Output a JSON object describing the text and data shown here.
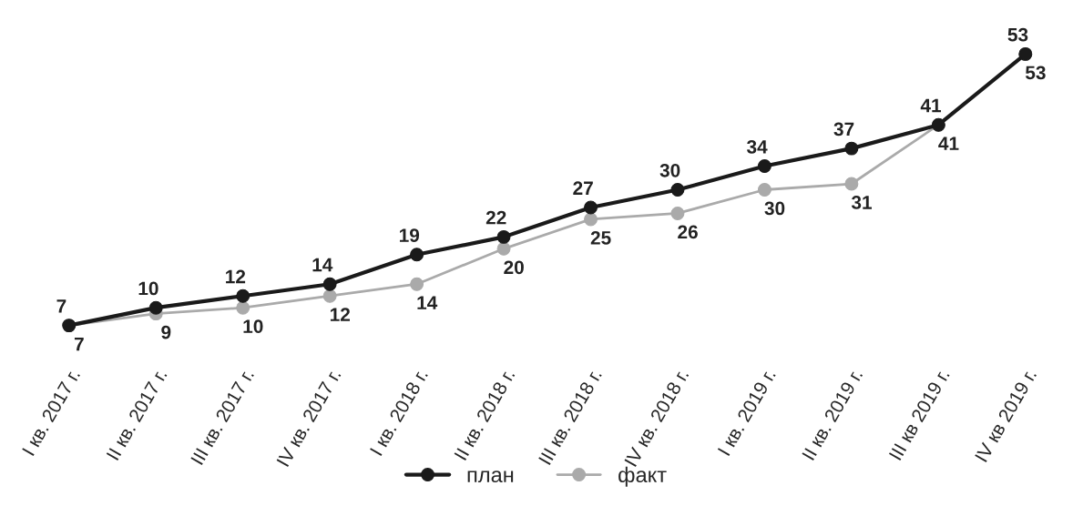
{
  "chart_data": {
    "type": "line",
    "categories": [
      "I кв. 2017 г.",
      "II кв. 2017 г.",
      "III кв. 2017 г.",
      "IV кв. 2017 г.",
      "I кв. 2018 г.",
      "II кв. 2018 г.",
      "III кв. 2018 г.",
      "IV кв. 2018 г.",
      "I кв. 2019 г.",
      "II кв. 2019 г.",
      "III кв 2019 г.",
      "IV кв 2019 г."
    ],
    "series": [
      {
        "name": "план",
        "color": "#1a1a1a",
        "values": [
          7,
          10,
          12,
          14,
          19,
          22,
          27,
          30,
          34,
          37,
          41,
          53
        ]
      },
      {
        "name": "факт",
        "color": "#aaaaaa",
        "values": [
          7,
          9,
          10,
          12,
          14,
          20,
          25,
          26,
          30,
          31,
          41,
          53
        ]
      }
    ],
    "data_labels": true,
    "marker": "circle",
    "legend": "bottom",
    "grid": false
  }
}
